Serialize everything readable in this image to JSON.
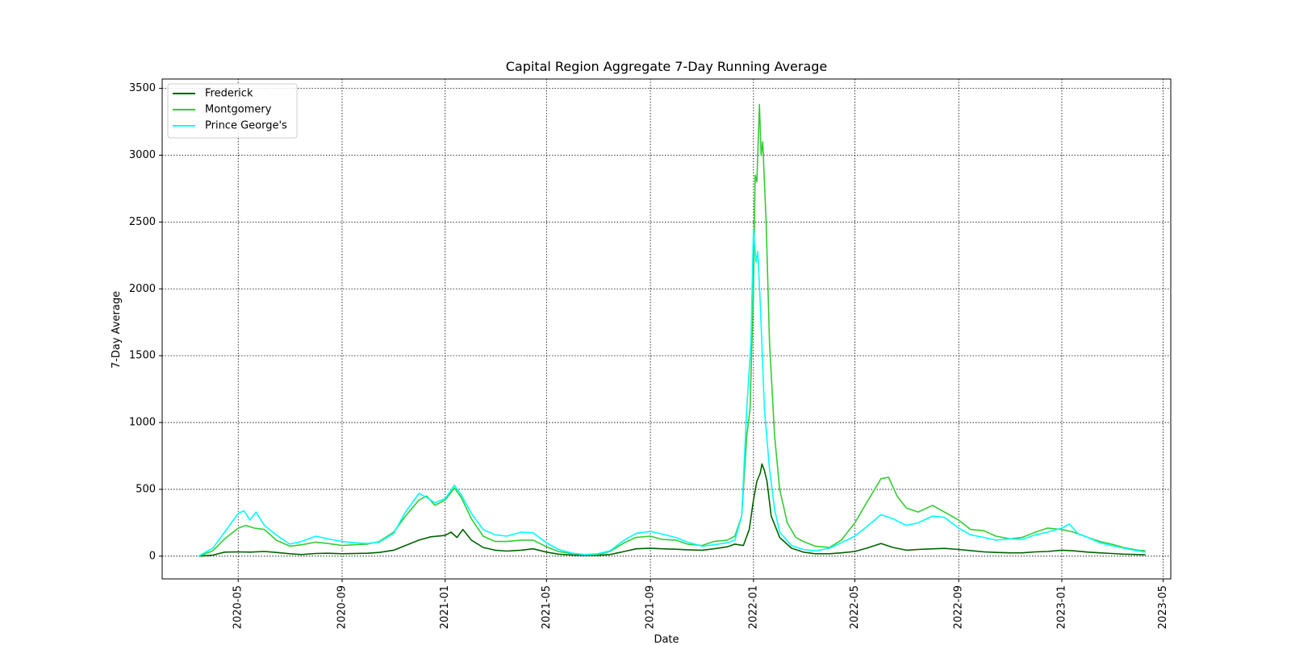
{
  "chart_data": {
    "type": "line",
    "title": "Capital Region Aggregate 7-Day Running Average",
    "xlabel": "Date",
    "ylabel": "7-Day Average",
    "xlim": [
      "2020-02-01",
      "2023-05-10"
    ],
    "ylim": [
      -170,
      3570
    ],
    "x_ticks": [
      "2020-05",
      "2020-09",
      "2021-01",
      "2021-05",
      "2021-09",
      "2022-01",
      "2022-05",
      "2022-09",
      "2023-01",
      "2023-05"
    ],
    "y_ticks": [
      0,
      500,
      1000,
      1500,
      2000,
      2500,
      3000,
      3500
    ],
    "grid": true,
    "legend_position": "top-left",
    "series": [
      {
        "name": "Frederick",
        "color": "#006400",
        "points": [
          [
            "2020-03-15",
            0
          ],
          [
            "2020-04-01",
            8
          ],
          [
            "2020-04-15",
            30
          ],
          [
            "2020-05-01",
            32
          ],
          [
            "2020-05-15",
            30
          ],
          [
            "2020-06-01",
            35
          ],
          [
            "2020-06-15",
            28
          ],
          [
            "2020-07-01",
            18
          ],
          [
            "2020-07-15",
            12
          ],
          [
            "2020-08-01",
            20
          ],
          [
            "2020-08-15",
            22
          ],
          [
            "2020-09-01",
            18
          ],
          [
            "2020-10-01",
            22
          ],
          [
            "2020-10-15",
            28
          ],
          [
            "2020-11-01",
            45
          ],
          [
            "2020-11-15",
            80
          ],
          [
            "2020-12-01",
            120
          ],
          [
            "2020-12-15",
            145
          ],
          [
            "2021-01-01",
            155
          ],
          [
            "2021-01-08",
            180
          ],
          [
            "2021-01-15",
            140
          ],
          [
            "2021-01-22",
            200
          ],
          [
            "2021-02-01",
            120
          ],
          [
            "2021-02-15",
            65
          ],
          [
            "2021-03-01",
            45
          ],
          [
            "2021-03-15",
            38
          ],
          [
            "2021-04-01",
            45
          ],
          [
            "2021-04-15",
            55
          ],
          [
            "2021-05-01",
            30
          ],
          [
            "2021-05-15",
            15
          ],
          [
            "2021-06-01",
            8
          ],
          [
            "2021-06-15",
            5
          ],
          [
            "2021-07-01",
            6
          ],
          [
            "2021-07-15",
            12
          ],
          [
            "2021-08-01",
            35
          ],
          [
            "2021-08-15",
            55
          ],
          [
            "2021-09-01",
            60
          ],
          [
            "2021-09-15",
            55
          ],
          [
            "2021-10-01",
            52
          ],
          [
            "2021-10-15",
            48
          ],
          [
            "2021-11-01",
            45
          ],
          [
            "2021-11-15",
            55
          ],
          [
            "2021-12-01",
            70
          ],
          [
            "2021-12-10",
            90
          ],
          [
            "2021-12-20",
            80
          ],
          [
            "2021-12-27",
            200
          ],
          [
            "2022-01-01",
            420
          ],
          [
            "2022-01-05",
            560
          ],
          [
            "2022-01-09",
            620
          ],
          [
            "2022-01-11",
            690
          ],
          [
            "2022-01-14",
            640
          ],
          [
            "2022-01-17",
            560
          ],
          [
            "2022-01-22",
            300
          ],
          [
            "2022-02-01",
            140
          ],
          [
            "2022-02-15",
            60
          ],
          [
            "2022-03-01",
            30
          ],
          [
            "2022-03-15",
            18
          ],
          [
            "2022-04-01",
            18
          ],
          [
            "2022-04-15",
            25
          ],
          [
            "2022-05-01",
            35
          ],
          [
            "2022-05-15",
            60
          ],
          [
            "2022-06-01",
            95
          ],
          [
            "2022-06-15",
            65
          ],
          [
            "2022-07-01",
            45
          ],
          [
            "2022-07-15",
            50
          ],
          [
            "2022-08-01",
            55
          ],
          [
            "2022-08-15",
            58
          ],
          [
            "2022-09-01",
            50
          ],
          [
            "2022-09-15",
            42
          ],
          [
            "2022-10-01",
            32
          ],
          [
            "2022-10-15",
            28
          ],
          [
            "2022-11-01",
            25
          ],
          [
            "2022-11-15",
            25
          ],
          [
            "2022-12-01",
            32
          ],
          [
            "2022-12-15",
            35
          ],
          [
            "2023-01-01",
            45
          ],
          [
            "2023-01-15",
            40
          ],
          [
            "2023-02-01",
            30
          ],
          [
            "2023-02-15",
            25
          ],
          [
            "2023-03-01",
            20
          ],
          [
            "2023-03-15",
            15
          ],
          [
            "2023-04-01",
            12
          ],
          [
            "2023-04-10",
            10
          ]
        ]
      },
      {
        "name": "Montgomery",
        "color": "#32cd32",
        "points": [
          [
            "2020-03-15",
            0
          ],
          [
            "2020-04-01",
            40
          ],
          [
            "2020-04-15",
            130
          ],
          [
            "2020-05-01",
            210
          ],
          [
            "2020-05-10",
            230
          ],
          [
            "2020-05-20",
            210
          ],
          [
            "2020-06-01",
            200
          ],
          [
            "2020-06-15",
            120
          ],
          [
            "2020-07-01",
            75
          ],
          [
            "2020-07-15",
            85
          ],
          [
            "2020-08-01",
            105
          ],
          [
            "2020-08-15",
            95
          ],
          [
            "2020-09-01",
            80
          ],
          [
            "2020-09-15",
            85
          ],
          [
            "2020-10-01",
            90
          ],
          [
            "2020-10-15",
            110
          ],
          [
            "2020-11-01",
            180
          ],
          [
            "2020-11-15",
            300
          ],
          [
            "2020-12-01",
            420
          ],
          [
            "2020-12-10",
            450
          ],
          [
            "2020-12-20",
            380
          ],
          [
            "2021-01-01",
            420
          ],
          [
            "2021-01-12",
            510
          ],
          [
            "2021-01-20",
            440
          ],
          [
            "2021-02-01",
            280
          ],
          [
            "2021-02-15",
            150
          ],
          [
            "2021-03-01",
            110
          ],
          [
            "2021-03-15",
            110
          ],
          [
            "2021-04-01",
            120
          ],
          [
            "2021-04-15",
            120
          ],
          [
            "2021-05-01",
            70
          ],
          [
            "2021-05-15",
            35
          ],
          [
            "2021-06-01",
            18
          ],
          [
            "2021-06-15",
            10
          ],
          [
            "2021-07-01",
            12
          ],
          [
            "2021-07-15",
            35
          ],
          [
            "2021-08-01",
            100
          ],
          [
            "2021-08-15",
            140
          ],
          [
            "2021-09-01",
            150
          ],
          [
            "2021-09-15",
            125
          ],
          [
            "2021-10-01",
            120
          ],
          [
            "2021-10-15",
            90
          ],
          [
            "2021-11-01",
            80
          ],
          [
            "2021-11-15",
            110
          ],
          [
            "2021-12-01",
            120
          ],
          [
            "2021-12-10",
            150
          ],
          [
            "2021-12-18",
            300
          ],
          [
            "2021-12-24",
            900
          ],
          [
            "2021-12-28",
            1100
          ],
          [
            "2022-01-01",
            2000
          ],
          [
            "2022-01-03",
            2850
          ],
          [
            "2022-01-05",
            2800
          ],
          [
            "2022-01-08",
            3380
          ],
          [
            "2022-01-10",
            3000
          ],
          [
            "2022-01-12",
            3100
          ],
          [
            "2022-01-16",
            2500
          ],
          [
            "2022-01-20",
            1600
          ],
          [
            "2022-01-26",
            900
          ],
          [
            "2022-02-01",
            500
          ],
          [
            "2022-02-10",
            250
          ],
          [
            "2022-02-20",
            140
          ],
          [
            "2022-03-01",
            110
          ],
          [
            "2022-03-15",
            75
          ],
          [
            "2022-04-01",
            65
          ],
          [
            "2022-04-15",
            120
          ],
          [
            "2022-05-01",
            250
          ],
          [
            "2022-05-15",
            400
          ],
          [
            "2022-06-01",
            580
          ],
          [
            "2022-06-10",
            590
          ],
          [
            "2022-06-20",
            450
          ],
          [
            "2022-07-01",
            360
          ],
          [
            "2022-07-15",
            330
          ],
          [
            "2022-08-01",
            380
          ],
          [
            "2022-08-15",
            330
          ],
          [
            "2022-09-01",
            270
          ],
          [
            "2022-09-15",
            200
          ],
          [
            "2022-10-01",
            190
          ],
          [
            "2022-10-15",
            150
          ],
          [
            "2022-11-01",
            130
          ],
          [
            "2022-11-15",
            140
          ],
          [
            "2022-12-01",
            180
          ],
          [
            "2022-12-15",
            210
          ],
          [
            "2023-01-01",
            200
          ],
          [
            "2023-01-15",
            180
          ],
          [
            "2023-02-01",
            140
          ],
          [
            "2023-02-15",
            110
          ],
          [
            "2023-03-01",
            90
          ],
          [
            "2023-03-15",
            65
          ],
          [
            "2023-04-01",
            45
          ],
          [
            "2023-04-10",
            40
          ]
        ]
      },
      {
        "name": "Prince George's",
        "color": "#00ffff",
        "points": [
          [
            "2020-03-15",
            0
          ],
          [
            "2020-04-01",
            60
          ],
          [
            "2020-04-15",
            180
          ],
          [
            "2020-05-01",
            320
          ],
          [
            "2020-05-08",
            340
          ],
          [
            "2020-05-15",
            270
          ],
          [
            "2020-05-22",
            330
          ],
          [
            "2020-06-01",
            230
          ],
          [
            "2020-06-15",
            160
          ],
          [
            "2020-07-01",
            90
          ],
          [
            "2020-07-15",
            110
          ],
          [
            "2020-08-01",
            150
          ],
          [
            "2020-08-15",
            130
          ],
          [
            "2020-09-01",
            110
          ],
          [
            "2020-09-15",
            100
          ],
          [
            "2020-10-01",
            95
          ],
          [
            "2020-10-15",
            105
          ],
          [
            "2020-11-01",
            170
          ],
          [
            "2020-11-15",
            330
          ],
          [
            "2020-12-01",
            470
          ],
          [
            "2020-12-10",
            440
          ],
          [
            "2020-12-20",
            400
          ],
          [
            "2021-01-01",
            430
          ],
          [
            "2021-01-12",
            530
          ],
          [
            "2021-01-20",
            460
          ],
          [
            "2021-02-01",
            320
          ],
          [
            "2021-02-15",
            200
          ],
          [
            "2021-03-01",
            160
          ],
          [
            "2021-03-15",
            150
          ],
          [
            "2021-04-01",
            180
          ],
          [
            "2021-04-15",
            175
          ],
          [
            "2021-05-01",
            100
          ],
          [
            "2021-05-15",
            50
          ],
          [
            "2021-06-01",
            22
          ],
          [
            "2021-06-15",
            12
          ],
          [
            "2021-07-01",
            18
          ],
          [
            "2021-07-15",
            40
          ],
          [
            "2021-08-01",
            120
          ],
          [
            "2021-08-15",
            170
          ],
          [
            "2021-09-01",
            185
          ],
          [
            "2021-09-15",
            165
          ],
          [
            "2021-10-01",
            140
          ],
          [
            "2021-10-15",
            105
          ],
          [
            "2021-11-01",
            75
          ],
          [
            "2021-11-15",
            85
          ],
          [
            "2021-12-01",
            100
          ],
          [
            "2021-12-10",
            120
          ],
          [
            "2021-12-18",
            300
          ],
          [
            "2021-12-24",
            1100
          ],
          [
            "2021-12-29",
            1600
          ],
          [
            "2022-01-01",
            2450
          ],
          [
            "2022-01-04",
            2200
          ],
          [
            "2022-01-06",
            2280
          ],
          [
            "2022-01-09",
            1900
          ],
          [
            "2022-01-14",
            1100
          ],
          [
            "2022-01-20",
            650
          ],
          [
            "2022-01-26",
            350
          ],
          [
            "2022-02-01",
            180
          ],
          [
            "2022-02-15",
            80
          ],
          [
            "2022-03-01",
            50
          ],
          [
            "2022-03-15",
            40
          ],
          [
            "2022-04-01",
            60
          ],
          [
            "2022-04-15",
            100
          ],
          [
            "2022-05-01",
            150
          ],
          [
            "2022-05-15",
            220
          ],
          [
            "2022-06-01",
            310
          ],
          [
            "2022-06-15",
            280
          ],
          [
            "2022-07-01",
            230
          ],
          [
            "2022-07-15",
            250
          ],
          [
            "2022-08-01",
            300
          ],
          [
            "2022-08-15",
            290
          ],
          [
            "2022-09-01",
            210
          ],
          [
            "2022-09-15",
            160
          ],
          [
            "2022-10-01",
            140
          ],
          [
            "2022-10-15",
            120
          ],
          [
            "2022-11-01",
            130
          ],
          [
            "2022-11-15",
            125
          ],
          [
            "2022-12-01",
            160
          ],
          [
            "2022-12-15",
            180
          ],
          [
            "2023-01-01",
            210
          ],
          [
            "2023-01-10",
            240
          ],
          [
            "2023-01-20",
            170
          ],
          [
            "2023-02-01",
            140
          ],
          [
            "2023-02-15",
            100
          ],
          [
            "2023-03-01",
            80
          ],
          [
            "2023-03-15",
            60
          ],
          [
            "2023-04-01",
            40
          ],
          [
            "2023-04-10",
            30
          ]
        ]
      }
    ]
  }
}
